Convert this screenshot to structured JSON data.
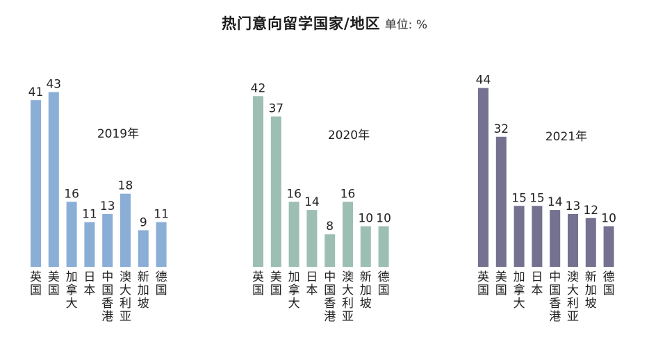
{
  "header": {
    "title": "热门意向留学国家/地区",
    "unit": "单位: %"
  },
  "chart_data": [
    {
      "type": "bar",
      "title": "2019年",
      "color": "#8aaed6",
      "categories": [
        "英国",
        "美国",
        "加拿大",
        "日本",
        "中国香港",
        "澳大利亚",
        "新加坡",
        "德国"
      ],
      "values": [
        41,
        43,
        16,
        11,
        13,
        18,
        9,
        11
      ]
    },
    {
      "type": "bar",
      "title": "2020年",
      "color": "#9dbfb3",
      "categories": [
        "英国",
        "美国",
        "加拿大",
        "日本",
        "中国香港",
        "澳大利亚",
        "新加坡",
        "德国"
      ],
      "values": [
        42,
        37,
        16,
        14,
        8,
        16,
        10,
        10
      ]
    },
    {
      "type": "bar",
      "title": "2021年",
      "color": "#757191",
      "categories": [
        "英国",
        "美国",
        "加拿大",
        "日本",
        "中国香港",
        "澳大利亚",
        "新加坡",
        "德国"
      ],
      "values": [
        44,
        32,
        15,
        15,
        14,
        13,
        12,
        10
      ]
    }
  ]
}
